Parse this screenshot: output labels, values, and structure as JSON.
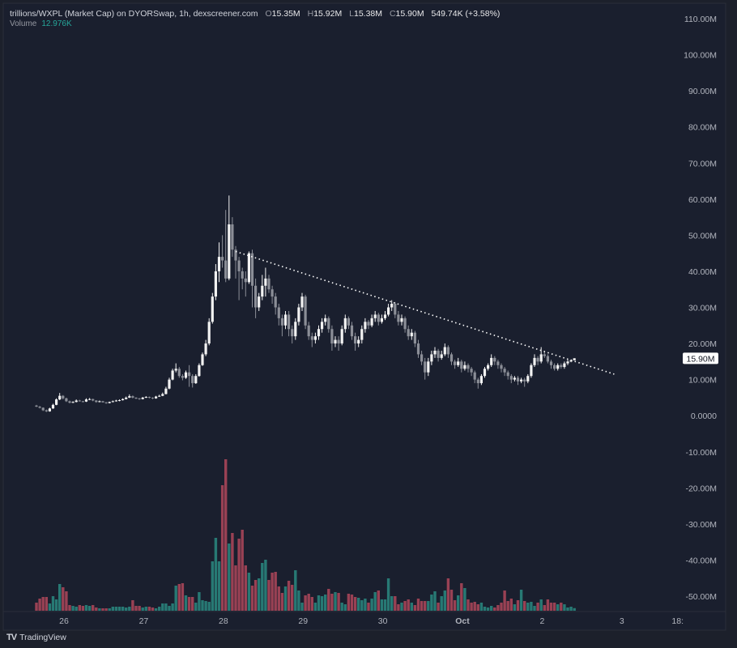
{
  "header": {
    "title": "trillions/WXPL (Market Cap) on DYORSwap, 1h, dexscreener.com",
    "o_label": "O",
    "o_value": "15.35M",
    "h_label": "H",
    "h_value": "15.92M",
    "l_label": "L",
    "l_value": "15.38M",
    "c_label": "C",
    "c_value": "15.90M",
    "change": "549.74K (+3.58%)",
    "volume_label": "Volume",
    "volume_value": "12.976K"
  },
  "brand": "TradingView",
  "colors": {
    "background": "#1a1f2e",
    "up_candle": "#f2f2f2",
    "down_candle": "#8b8e97",
    "volume_up": "#2a8a80",
    "volume_down": "#b0485a",
    "price_label_bg": "#ffffff",
    "volume_text": "#26a69a"
  },
  "chart_data": {
    "type": "candlestick",
    "interval": "1h",
    "price_unit": "M",
    "volume_unit": "K",
    "ylim": [
      -50,
      110
    ],
    "y_ticks": [
      "110.00M",
      "100.00M",
      "90.00M",
      "80.00M",
      "70.00M",
      "60.00M",
      "50.00M",
      "40.00M",
      "30.00M",
      "20.00M",
      "10.00M",
      "0.0000",
      "-10.00M",
      "-20.00M",
      "-30.00M",
      "-40.00M",
      "-50.00M"
    ],
    "y_tick_values": [
      110,
      100,
      90,
      80,
      70,
      60,
      50,
      40,
      30,
      20,
      10,
      0,
      -10,
      -20,
      -30,
      -40,
      -50
    ],
    "x_ticks": [
      "26",
      "27",
      "28",
      "29",
      "30",
      "Oct",
      "2",
      "3",
      "18:"
    ],
    "current_price_label": "15.90M",
    "current_price": 15.9,
    "grid": false,
    "candles_ohlc": [
      [
        2.8,
        3.0,
        2.4,
        2.5
      ],
      [
        2.5,
        2.7,
        2.0,
        2.2
      ],
      [
        2.2,
        2.3,
        1.3,
        1.5
      ],
      [
        1.5,
        1.7,
        1.0,
        1.2
      ],
      [
        1.2,
        2.2,
        1.1,
        2.0
      ],
      [
        2.0,
        3.3,
        1.9,
        3.0
      ],
      [
        3.0,
        4.8,
        2.9,
        4.5
      ],
      [
        4.5,
        6.3,
        4.3,
        5.5
      ],
      [
        5.5,
        5.7,
        4.5,
        4.8
      ],
      [
        4.8,
        5.0,
        3.8,
        4.0
      ],
      [
        4.0,
        4.2,
        3.4,
        3.6
      ],
      [
        3.6,
        4.0,
        3.5,
        3.8
      ],
      [
        3.8,
        4.5,
        3.7,
        4.2
      ],
      [
        4.2,
        4.4,
        3.9,
        4.0
      ],
      [
        4.0,
        4.1,
        3.7,
        3.9
      ],
      [
        3.9,
        4.8,
        3.8,
        4.5
      ],
      [
        4.5,
        4.9,
        4.3,
        4.6
      ],
      [
        4.6,
        4.7,
        4.0,
        4.2
      ],
      [
        4.2,
        4.3,
        3.6,
        3.8
      ],
      [
        3.8,
        4.2,
        3.7,
        4.0
      ],
      [
        4.0,
        4.1,
        3.6,
        3.7
      ],
      [
        3.7,
        3.8,
        3.3,
        3.5
      ],
      [
        3.5,
        3.9,
        3.4,
        3.8
      ],
      [
        3.8,
        4.2,
        3.7,
        4.0
      ],
      [
        4.0,
        4.4,
        3.9,
        4.2
      ],
      [
        4.2,
        4.5,
        4.0,
        4.3
      ],
      [
        4.3,
        4.8,
        4.2,
        4.6
      ],
      [
        4.6,
        5.3,
        4.5,
        5.0
      ],
      [
        5.0,
        5.9,
        4.9,
        5.4
      ],
      [
        5.4,
        5.6,
        4.8,
        5.0
      ],
      [
        5.0,
        5.1,
        4.6,
        4.8
      ],
      [
        4.8,
        4.9,
        4.4,
        4.6
      ],
      [
        4.6,
        5.2,
        4.5,
        5.0
      ],
      [
        5.0,
        5.4,
        4.9,
        5.2
      ],
      [
        5.2,
        5.3,
        4.8,
        5.0
      ],
      [
        5.0,
        5.1,
        4.6,
        4.8
      ],
      [
        4.8,
        5.5,
        4.7,
        5.3
      ],
      [
        5.3,
        5.8,
        5.2,
        5.5
      ],
      [
        5.5,
        6.4,
        5.4,
        6.0
      ],
      [
        6.0,
        8.0,
        5.9,
        7.5
      ],
      [
        7.5,
        10.5,
        7.3,
        10.0
      ],
      [
        10.0,
        13.0,
        9.8,
        12.5
      ],
      [
        12.5,
        14.5,
        12.0,
        13.0
      ],
      [
        13.0,
        13.5,
        10.5,
        11.0
      ],
      [
        11.0,
        11.5,
        9.8,
        10.5
      ],
      [
        10.5,
        12.5,
        10.2,
        12.0
      ],
      [
        12.0,
        14.0,
        8.0,
        11.0
      ],
      [
        11.0,
        11.5,
        7.8,
        9.0
      ],
      [
        9.0,
        11.5,
        8.8,
        11.0
      ],
      [
        11.0,
        14.5,
        10.8,
        14.0
      ],
      [
        14.0,
        17.5,
        13.8,
        17.0
      ],
      [
        17.0,
        21.0,
        16.5,
        20.0
      ],
      [
        20.0,
        27.0,
        19.5,
        26.0
      ],
      [
        26.0,
        34.0,
        25.5,
        33.0
      ],
      [
        33.0,
        42.0,
        32.0,
        40.0
      ],
      [
        40.0,
        48.0,
        37.0,
        44.0
      ],
      [
        44.0,
        50.0,
        41.0,
        43.0
      ],
      [
        43.0,
        57.0,
        37.0,
        38.0
      ],
      [
        38.0,
        61.0,
        37.5,
        53.0
      ],
      [
        53.0,
        55.0,
        44.0,
        46.0
      ],
      [
        46.0,
        47.0,
        38.0,
        43.0
      ],
      [
        43.0,
        44.0,
        32.0,
        40.0
      ],
      [
        40.0,
        41.0,
        35.0,
        38.0
      ],
      [
        38.0,
        40.0,
        33.0,
        37.0
      ],
      [
        37.0,
        45.5,
        36.5,
        45.0
      ],
      [
        45.0,
        46.0,
        30.0,
        36.0
      ],
      [
        36.0,
        38.0,
        27.0,
        30.0
      ],
      [
        30.0,
        34.0,
        29.0,
        33.0
      ],
      [
        33.0,
        39.0,
        32.0,
        36.0
      ],
      [
        36.0,
        41.0,
        33.0,
        38.0
      ],
      [
        38.0,
        39.0,
        34.0,
        35.0
      ],
      [
        35.0,
        36.0,
        31.0,
        33.0
      ],
      [
        33.0,
        34.0,
        28.0,
        30.0
      ],
      [
        30.0,
        31.0,
        25.0,
        27.0
      ],
      [
        27.0,
        28.0,
        22.0,
        25.0
      ],
      [
        25.0,
        29.0,
        24.0,
        28.0
      ],
      [
        28.0,
        29.0,
        22.0,
        24.0
      ],
      [
        24.0,
        25.0,
        20.0,
        22.0
      ],
      [
        22.0,
        27.0,
        21.0,
        26.0
      ],
      [
        26.0,
        31.0,
        25.0,
        30.0
      ],
      [
        30.0,
        34.0,
        29.0,
        33.0
      ],
      [
        33.0,
        33.5,
        24.0,
        25.0
      ],
      [
        25.0,
        26.0,
        21.0,
        22.0
      ],
      [
        22.0,
        23.0,
        19.0,
        21.0
      ],
      [
        21.0,
        23.0,
        20.0,
        22.0
      ],
      [
        22.0,
        25.0,
        21.0,
        24.0
      ],
      [
        24.0,
        27.0,
        23.0,
        26.0
      ],
      [
        26.0,
        28.0,
        25.0,
        27.0
      ],
      [
        27.0,
        27.5,
        23.0,
        24.0
      ],
      [
        24.0,
        25.0,
        18.0,
        20.0
      ],
      [
        20.0,
        22.0,
        19.0,
        21.0
      ],
      [
        21.0,
        22.0,
        18.0,
        20.0
      ],
      [
        20.0,
        25.0,
        19.5,
        24.0
      ],
      [
        24.0,
        28.0,
        23.0,
        27.0
      ],
      [
        27.0,
        27.5,
        24.0,
        25.0
      ],
      [
        25.0,
        26.0,
        21.0,
        22.0
      ],
      [
        22.0,
        23.0,
        18.0,
        20.0
      ],
      [
        20.0,
        22.0,
        19.0,
        21.0
      ],
      [
        21.0,
        25.0,
        20.0,
        24.0
      ],
      [
        24.0,
        27.0,
        23.0,
        26.0
      ],
      [
        26.0,
        26.5,
        24.0,
        25.0
      ],
      [
        25.0,
        28.0,
        24.5,
        27.0
      ],
      [
        27.0,
        29.0,
        26.0,
        28.0
      ],
      [
        28.0,
        28.5,
        25.0,
        26.0
      ],
      [
        26.0,
        28.0,
        25.5,
        27.0
      ],
      [
        27.0,
        29.0,
        26.5,
        28.0
      ],
      [
        28.0,
        31.0,
        27.5,
        30.0
      ],
      [
        30.0,
        32.0,
        29.0,
        31.0
      ],
      [
        31.0,
        31.5,
        27.0,
        28.0
      ],
      [
        28.0,
        29.0,
        25.0,
        26.0
      ],
      [
        26.0,
        28.0,
        25.0,
        27.0
      ],
      [
        27.0,
        27.5,
        23.0,
        24.0
      ],
      [
        24.0,
        25.0,
        21.0,
        22.0
      ],
      [
        22.0,
        24.0,
        21.0,
        23.0
      ],
      [
        23.0,
        23.5,
        19.0,
        20.0
      ],
      [
        20.0,
        21.0,
        16.0,
        17.0
      ],
      [
        17.0,
        18.0,
        14.0,
        15.0
      ],
      [
        15.0,
        16.0,
        10.0,
        12.0
      ],
      [
        12.0,
        16.0,
        11.0,
        15.0
      ],
      [
        15.0,
        18.0,
        14.0,
        17.0
      ],
      [
        17.0,
        19.0,
        16.0,
        18.0
      ],
      [
        18.0,
        18.5,
        15.0,
        16.0
      ],
      [
        16.0,
        18.0,
        15.5,
        17.0
      ],
      [
        17.0,
        20.0,
        16.5,
        19.0
      ],
      [
        19.0,
        19.5,
        16.0,
        17.0
      ],
      [
        17.0,
        17.5,
        14.0,
        15.0
      ],
      [
        15.0,
        15.5,
        13.0,
        14.0
      ],
      [
        14.0,
        16.0,
        13.5,
        15.0
      ],
      [
        15.0,
        15.5,
        12.0,
        13.0
      ],
      [
        13.0,
        15.0,
        12.5,
        14.0
      ],
      [
        14.0,
        14.5,
        12.0,
        13.0
      ],
      [
        13.0,
        13.5,
        11.0,
        12.0
      ],
      [
        12.0,
        12.5,
        9.0,
        10.0
      ],
      [
        10.0,
        10.5,
        7.5,
        9.0
      ],
      [
        9.0,
        11.5,
        8.5,
        11.0
      ],
      [
        11.0,
        13.5,
        10.5,
        13.0
      ],
      [
        13.0,
        14.5,
        12.5,
        14.0
      ],
      [
        14.0,
        17.0,
        13.5,
        16.0
      ],
      [
        16.0,
        16.5,
        14.0,
        15.0
      ],
      [
        15.0,
        15.5,
        13.0,
        14.0
      ],
      [
        14.0,
        14.5,
        12.0,
        13.0
      ],
      [
        13.0,
        13.5,
        11.0,
        12.0
      ],
      [
        12.0,
        12.5,
        10.0,
        11.0
      ],
      [
        11.0,
        11.5,
        9.0,
        10.0
      ],
      [
        10.0,
        11.0,
        9.5,
        10.5
      ],
      [
        10.5,
        11.0,
        8.5,
        9.5
      ],
      [
        9.5,
        10.5,
        9.0,
        10.0
      ],
      [
        10.0,
        10.5,
        8.0,
        9.5
      ],
      [
        9.5,
        11.5,
        9.0,
        11.0
      ],
      [
        11.0,
        14.5,
        10.5,
        14.0
      ],
      [
        14.0,
        17.0,
        13.5,
        16.0
      ],
      [
        16.0,
        16.5,
        14.0,
        15.0
      ],
      [
        15.0,
        19.0,
        14.5,
        17.0
      ],
      [
        17.0,
        18.0,
        16.0,
        16.5
      ],
      [
        16.5,
        17.0,
        14.5,
        15.0
      ],
      [
        15.0,
        15.5,
        13.0,
        14.0
      ],
      [
        14.0,
        14.5,
        12.5,
        13.0
      ],
      [
        13.0,
        14.5,
        12.5,
        14.0
      ],
      [
        14.0,
        14.5,
        13.0,
        13.5
      ],
      [
        13.5,
        15.0,
        13.0,
        14.5
      ],
      [
        14.5,
        15.5,
        14.0,
        15.0
      ],
      [
        15.0,
        15.6,
        14.8,
        15.35
      ],
      [
        15.35,
        15.92,
        15.38,
        15.9
      ]
    ],
    "volume": [
      40,
      60,
      68,
      68,
      36,
      72,
      56,
      132,
      116,
      96,
      28,
      24,
      20,
      28,
      24,
      28,
      24,
      28,
      16,
      12,
      12,
      12,
      12,
      20,
      20,
      20,
      20,
      16,
      20,
      52,
      24,
      24,
      16,
      20,
      20,
      16,
      12,
      20,
      36,
      36,
      24,
      36,
      124,
      132,
      136,
      76,
      68,
      68,
      40,
      92,
      52,
      48,
      44,
      244,
      360,
      244,
      620,
      748,
      332,
      384,
      224,
      356,
      400,
      224,
      188,
      124,
      152,
      160,
      236,
      252,
      152,
      188,
      192,
      120,
      88,
      120,
      148,
      128,
      200,
      100,
      40,
      76,
      84,
      68,
      40,
      76,
      72,
      80,
      108,
      84,
      92,
      88,
      40,
      32,
      84,
      80,
      68,
      64,
      52,
      60,
      40,
      60,
      92,
      100,
      56,
      56,
      160,
      72,
      72,
      32,
      40,
      48,
      56,
      40,
      28,
      60,
      48,
      48,
      48,
      80,
      96,
      40,
      72,
      100,
      160,
      104,
      52,
      76,
      136,
      112,
      56,
      40,
      44,
      32,
      40,
      20,
      16,
      24,
      16,
      28,
      40,
      100,
      48,
      60,
      32,
      52,
      104,
      48,
      40,
      44,
      24,
      40,
      56,
      28,
      56,
      40,
      40,
      32,
      40,
      32,
      16,
      20,
      12.976
    ],
    "trendline": {
      "style": "dotted",
      "from": {
        "bar": 60,
        "value": 45.5
      },
      "to": {
        "bar": 174,
        "value": 11.5
      }
    }
  }
}
